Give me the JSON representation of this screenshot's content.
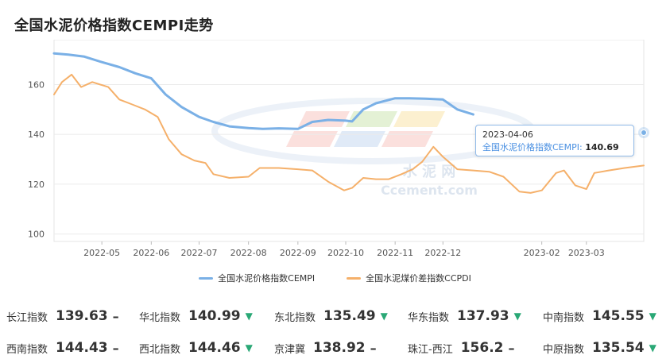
{
  "title": "全国水泥价格指数CEMPI走势",
  "colors": {
    "cempi": "#7ab0e6",
    "ccpdi": "#f5b06a",
    "down": "#2aa876"
  },
  "tooltip": {
    "date": "2023-04-06",
    "series_label": "全国水泥价格指数CEMPI:",
    "value": "140.69"
  },
  "legend": [
    {
      "name": "全国水泥价格指数CEMPI"
    },
    {
      "name": "全国水泥煤价差指数CCPDI"
    }
  ],
  "chart_data": {
    "type": "line",
    "x_ticks": [
      "2022-05",
      "2022-06",
      "2022-07",
      "2022-08",
      "2022-09",
      "2022-10",
      "2022-11",
      "2022-12",
      "2023-02",
      "2023-03"
    ],
    "y_ticks": [
      100,
      120,
      140,
      160
    ],
    "ylim": [
      97,
      178
    ],
    "x_range": [
      "2022-04-01",
      "2023-04-06"
    ],
    "grid": true,
    "series": [
      {
        "name": "全国水泥价格指数CEMPI",
        "color": "#7ab0e6",
        "points": [
          [
            "2022-04-01",
            172.5
          ],
          [
            "2022-04-10",
            172
          ],
          [
            "2022-04-20",
            171.2
          ],
          [
            "2022-05-01",
            169
          ],
          [
            "2022-05-12",
            167
          ],
          [
            "2022-05-22",
            164.5
          ],
          [
            "2022-06-01",
            162.5
          ],
          [
            "2022-06-10",
            156
          ],
          [
            "2022-06-20",
            151
          ],
          [
            "2022-07-01",
            147
          ],
          [
            "2022-07-10",
            145
          ],
          [
            "2022-07-20",
            143.2
          ],
          [
            "2022-08-01",
            142.5
          ],
          [
            "2022-08-10",
            142.2
          ],
          [
            "2022-08-20",
            142.4
          ],
          [
            "2022-09-01",
            142.2
          ],
          [
            "2022-09-10",
            145
          ],
          [
            "2022-09-20",
            145.8
          ],
          [
            "2022-10-01",
            145.5
          ],
          [
            "2022-10-05",
            145.2
          ],
          [
            "2022-10-12",
            150
          ],
          [
            "2022-10-20",
            152.5
          ],
          [
            "2022-11-01",
            154.5
          ],
          [
            "2022-11-10",
            154.5
          ],
          [
            "2022-11-20",
            154.3
          ],
          [
            "2022-12-01",
            154
          ],
          [
            "2022-12-10",
            150
          ],
          [
            "2022-12-20",
            148
          ]
        ]
      },
      {
        "name": "全国水泥煤价差指数CCPDI",
        "color": "#f5b06a",
        "points": [
          [
            "2022-04-01",
            156
          ],
          [
            "2022-04-06",
            161
          ],
          [
            "2022-04-12",
            164
          ],
          [
            "2022-04-18",
            159
          ],
          [
            "2022-04-25",
            161
          ],
          [
            "2022-05-05",
            159
          ],
          [
            "2022-05-12",
            154
          ],
          [
            "2022-05-20",
            152
          ],
          [
            "2022-05-28",
            150
          ],
          [
            "2022-06-05",
            147
          ],
          [
            "2022-06-12",
            138
          ],
          [
            "2022-06-20",
            132
          ],
          [
            "2022-06-28",
            129.5
          ],
          [
            "2022-07-05",
            128.5
          ],
          [
            "2022-07-10",
            124
          ],
          [
            "2022-07-20",
            122.5
          ],
          [
            "2022-08-01",
            123
          ],
          [
            "2022-08-08",
            126.5
          ],
          [
            "2022-08-20",
            126.5
          ],
          [
            "2022-09-01",
            126
          ],
          [
            "2022-09-10",
            125.5
          ],
          [
            "2022-09-20",
            121
          ],
          [
            "2022-09-30",
            117.5
          ],
          [
            "2022-10-05",
            118.5
          ],
          [
            "2022-10-12",
            122.5
          ],
          [
            "2022-10-20",
            122
          ],
          [
            "2022-10-28",
            122
          ],
          [
            "2022-11-05",
            124
          ],
          [
            "2022-11-12",
            126
          ],
          [
            "2022-11-18",
            129
          ],
          [
            "2022-11-25",
            135
          ],
          [
            "2022-12-01",
            131
          ],
          [
            "2022-12-10",
            126
          ],
          [
            "2022-12-20",
            125.5
          ],
          [
            "2022-12-30",
            125
          ],
          [
            "2023-01-08",
            123
          ],
          [
            "2023-01-18",
            117
          ],
          [
            "2023-01-25",
            116.5
          ],
          [
            "2023-02-01",
            117.5
          ],
          [
            "2023-02-10",
            124.5
          ],
          [
            "2023-02-15",
            125.5
          ],
          [
            "2023-02-22",
            119.5
          ],
          [
            "2023-03-01",
            118
          ],
          [
            "2023-03-06",
            124.5
          ],
          [
            "2023-03-15",
            125.5
          ],
          [
            "2023-03-25",
            126.5
          ],
          [
            "2023-04-06",
            127.5
          ]
        ]
      }
    ],
    "highlight": {
      "date": "2023-04-06",
      "value": 140.69,
      "series": "全国水泥价格指数CEMPI"
    }
  },
  "indices": [
    {
      "name": "长江指数",
      "value": "139.63",
      "trend": "flat"
    },
    {
      "name": "华北指数",
      "value": "140.99",
      "trend": "down"
    },
    {
      "name": "东北指数",
      "value": "135.49",
      "trend": "down"
    },
    {
      "name": "华东指数",
      "value": "137.93",
      "trend": "down"
    },
    {
      "name": "中南指数",
      "value": "145.55",
      "trend": "down"
    },
    {
      "name": "西南指数",
      "value": "144.43",
      "trend": "flat"
    },
    {
      "name": "西北指数",
      "value": "144.46",
      "trend": "down"
    },
    {
      "name": "京津冀",
      "value": "138.92",
      "trend": "flat"
    },
    {
      "name": "珠江-西江",
      "value": "156.2",
      "trend": "flat"
    },
    {
      "name": "中原指数",
      "value": "135.54",
      "trend": "down"
    }
  ],
  "watermark": {
    "cn": "水  泥  网",
    "en": "Ccement.com"
  }
}
